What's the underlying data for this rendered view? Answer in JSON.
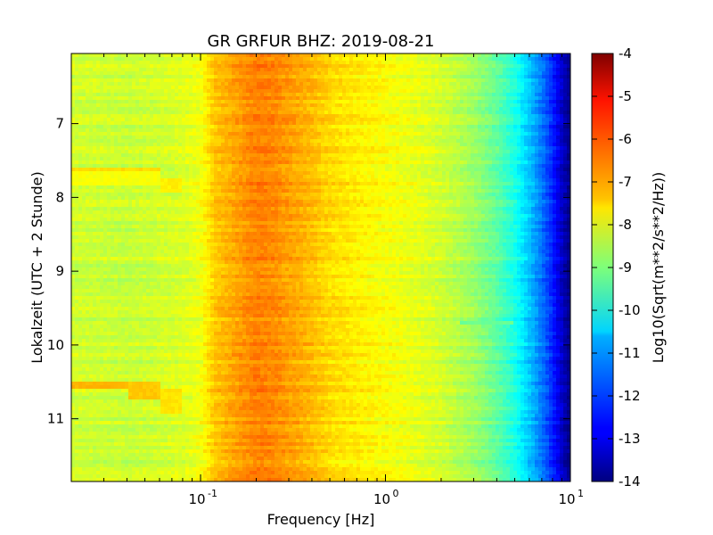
{
  "chart_data": {
    "type": "heatmap",
    "title": "GR GRFUR BHZ: 2019-08-21",
    "xlabel": "Frequency [Hz]",
    "ylabel": "Lokalzeit (UTC + 2 Stunde)",
    "colorbar_label": "Log10(Sqrt(m**2/s**2/Hz))",
    "x_scale": "log",
    "xlim": [
      0.02,
      10
    ],
    "x_ticks": [
      {
        "value": 0.1,
        "base": "10",
        "exp": "-1"
      },
      {
        "value": 1,
        "base": "10",
        "exp": "0"
      },
      {
        "value": 10,
        "base": "10",
        "exp": "1"
      }
    ],
    "ylim": [
      6.05,
      11.85
    ],
    "y_inverted": true,
    "y_ticks": [
      "7",
      "8",
      "9",
      "10",
      "11"
    ],
    "colorbar_range": [
      -14,
      -4
    ],
    "colorbar_ticks": [
      "-4",
      "-5",
      "-6",
      "-7",
      "-8",
      "-9",
      "-10",
      "-11",
      "-12",
      "-13",
      "-14"
    ],
    "colormap": "jet",
    "spectrum_profile": {
      "frequency_hz": [
        0.02,
        0.04,
        0.06,
        0.08,
        0.1,
        0.12,
        0.15,
        0.2,
        0.25,
        0.3,
        0.4,
        0.5,
        0.7,
        1,
        1.5,
        2,
        3,
        4,
        5,
        6,
        7,
        8,
        9,
        10
      ],
      "value": [
        -8.2,
        -8.3,
        -8.2,
        -8.1,
        -7.9,
        -7.2,
        -6.9,
        -6.5,
        -6.6,
        -6.8,
        -7.1,
        -7.4,
        -7.6,
        -7.8,
        -8.0,
        -8.2,
        -8.7,
        -9.3,
        -10.0,
        -10.8,
        -11.6,
        -12.4,
        -13.3,
        -14.0
      ]
    },
    "time_anomalies": [
      {
        "start": 7.6,
        "end": 7.65,
        "fmax": 0.06,
        "value": -7.4
      },
      {
        "start": 7.65,
        "end": 7.85,
        "fmax": 0.06,
        "value": -7.8
      },
      {
        "start": 7.75,
        "end": 7.95,
        "fmin": 0.06,
        "fmax": 0.08,
        "value": -7.6
      },
      {
        "start": 10.5,
        "end": 10.6,
        "fmax": 0.04,
        "value": -7.0
      },
      {
        "start": 10.5,
        "end": 10.75,
        "fmin": 0.04,
        "fmax": 0.06,
        "value": -7.2
      },
      {
        "start": 10.6,
        "end": 10.95,
        "fmin": 0.06,
        "fmax": 0.08,
        "value": -7.5
      },
      {
        "start": 7.97,
        "end": 8.0,
        "fmin": 1.5,
        "fmax": 5.0,
        "value": -8.6
      },
      {
        "start": 9.68,
        "end": 9.72,
        "fmin": 2.5,
        "fmax": 5.0,
        "value": -9.2
      }
    ],
    "grid": false
  }
}
